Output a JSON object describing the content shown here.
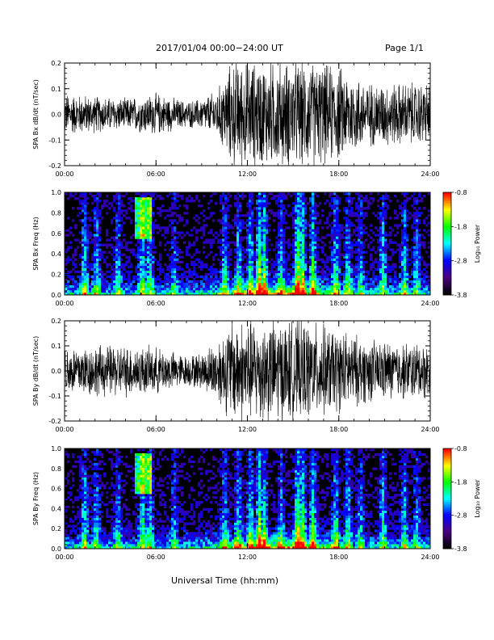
{
  "header": {
    "title": "2017/01/04  00:00−24:00 UT",
    "page": "Page 1/1"
  },
  "x_axis_label": "Universal Time (hh:mm)",
  "colorbar": {
    "label": "Log₁₀ Power",
    "ticks": [
      "-0.8",
      "-1.8",
      "-2.8",
      "-3.8"
    ],
    "range": [
      -3.8,
      -0.8
    ],
    "colors": [
      "#000000",
      "#4b0082",
      "#0000ff",
      "#00ffff",
      "#00ff00",
      "#ffff00",
      "#ff0000"
    ]
  },
  "chart_data": [
    {
      "type": "line",
      "ylabel": "SPA Bx dB/dt (nT/sec)",
      "xlim": [
        0,
        24
      ],
      "ylim": [
        -0.2,
        0.2
      ],
      "x_ticks": [
        "00:00",
        "06:00",
        "12:00",
        "18:00",
        "24:00"
      ],
      "y_ticks": [
        "-0.2",
        "-0.1",
        "0.0",
        "0.1",
        "0.2"
      ],
      "envelope": {
        "x": [
          0,
          2,
          4,
          6,
          8,
          9,
          10,
          11,
          12,
          14,
          16,
          18,
          20,
          22,
          24
        ],
        "amplitude": [
          0.08,
          0.07,
          0.06,
          0.08,
          0.05,
          0.06,
          0.09,
          0.2,
          0.2,
          0.2,
          0.2,
          0.18,
          0.12,
          0.12,
          0.12
        ]
      }
    },
    {
      "type": "heatmap",
      "ylabel": "SPA Bx Freq (Hz)",
      "xlim": [
        0,
        24
      ],
      "ylim": [
        0,
        1
      ],
      "x_ticks": [
        "00:00",
        "06:00",
        "12:00",
        "18:00",
        "24:00"
      ],
      "y_ticks": [
        "0.0",
        "0.2",
        "0.4",
        "0.6",
        "0.8",
        "1.0"
      ],
      "value_label": "Log₁₀ Power",
      "zlim": [
        -3.8,
        -0.8
      ]
    },
    {
      "type": "line",
      "ylabel": "SPA By dB/dt (nT/sec)",
      "xlim": [
        0,
        24
      ],
      "ylim": [
        -0.2,
        0.2
      ],
      "x_ticks": [
        "00:00",
        "06:00",
        "12:00",
        "18:00",
        "24:00"
      ],
      "y_ticks": [
        "-0.2",
        "-0.1",
        "0.0",
        "0.1",
        "0.2"
      ],
      "envelope": {
        "x": [
          0,
          2,
          4,
          6,
          8,
          9,
          10,
          11,
          12,
          14,
          16,
          18,
          20,
          22,
          24
        ],
        "amplitude": [
          0.1,
          0.1,
          0.1,
          0.09,
          0.06,
          0.07,
          0.12,
          0.2,
          0.2,
          0.2,
          0.19,
          0.16,
          0.12,
          0.11,
          0.11
        ]
      }
    },
    {
      "type": "heatmap",
      "ylabel": "SPA By Freq (Hz)",
      "xlim": [
        0,
        24
      ],
      "ylim": [
        0,
        1
      ],
      "x_ticks": [
        "00:00",
        "06:00",
        "12:00",
        "18:00",
        "24:00"
      ],
      "y_ticks": [
        "0.0",
        "0.2",
        "0.4",
        "0.6",
        "0.8",
        "1.0"
      ],
      "value_label": "Log₁₀ Power",
      "zlim": [
        -3.8,
        -0.8
      ]
    }
  ]
}
